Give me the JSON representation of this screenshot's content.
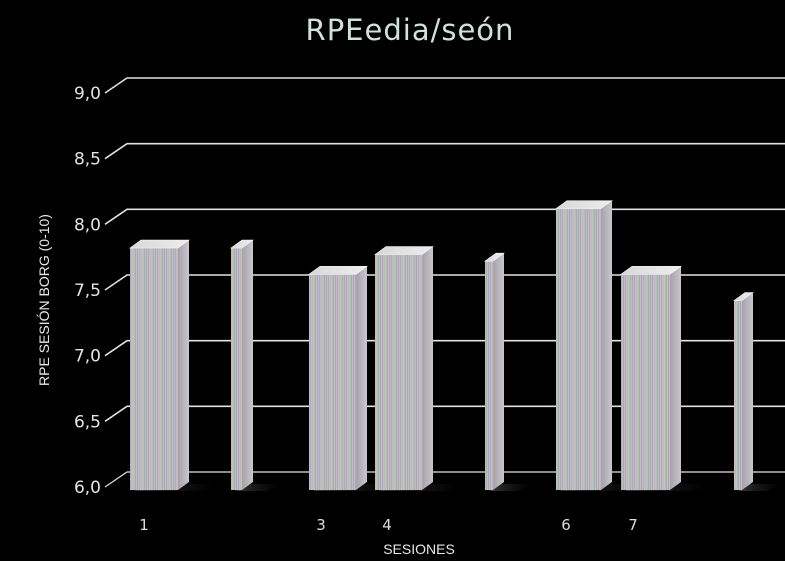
{
  "chart_data": {
    "type": "bar",
    "title": "RPEedia/seón",
    "xlabel": "SESIONES",
    "ylabel": "RPE SESIÓN BORG (0-10)",
    "ylim": [
      6.0,
      9.0
    ],
    "y_ticks": [
      "6,0",
      "6,5",
      "7,0",
      "7,5",
      "8,0",
      "8,5",
      "9,0"
    ],
    "categories": [
      "1",
      "",
      "3",
      "4",
      "",
      "6",
      "7",
      ""
    ],
    "values": [
      7.85,
      7.85,
      7.65,
      7.8,
      7.75,
      8.15,
      7.65,
      7.45
    ],
    "grid": true,
    "legend": "none"
  }
}
